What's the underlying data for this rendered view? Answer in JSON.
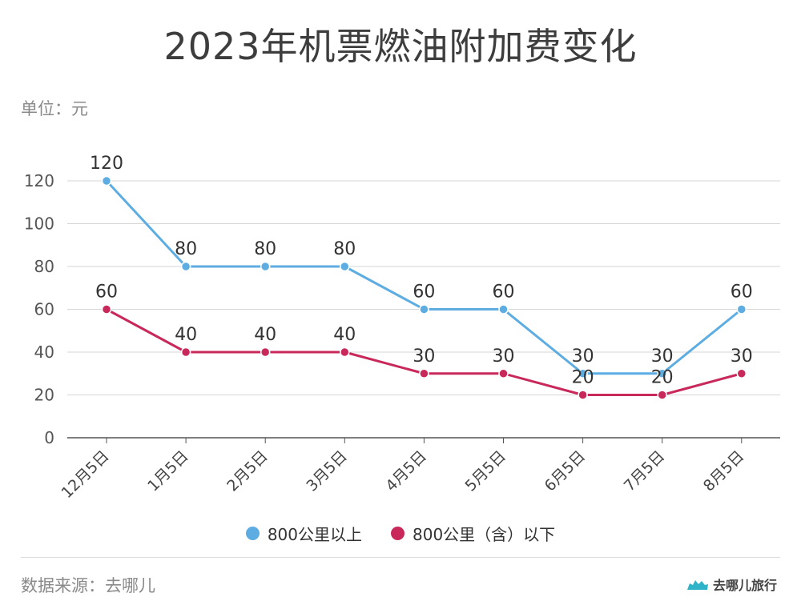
{
  "chart_data": {
    "type": "line",
    "title": "2023年机票燃油附加费变化",
    "unit_label": "单位：元",
    "categories": [
      "12月5日",
      "1月5日",
      "2月5日",
      "3月5日",
      "4月5日",
      "5月5日",
      "6月5日",
      "7月5日",
      "8月5日"
    ],
    "series": [
      {
        "name": "800公里以上",
        "color": "#5dade2",
        "values": [
          120,
          80,
          80,
          80,
          60,
          60,
          30,
          30,
          60
        ]
      },
      {
        "name": "800公里（含）以下",
        "color": "#c8285a",
        "values": [
          60,
          40,
          40,
          40,
          30,
          30,
          20,
          20,
          30
        ]
      }
    ],
    "y_ticks": [
      0,
      20,
      40,
      60,
      80,
      100,
      120
    ],
    "ylim": [
      0,
      120
    ],
    "grid": true,
    "legend_position": "bottom"
  },
  "footer": {
    "source": "数据来源：去哪儿",
    "brand": "去哪儿旅行"
  }
}
